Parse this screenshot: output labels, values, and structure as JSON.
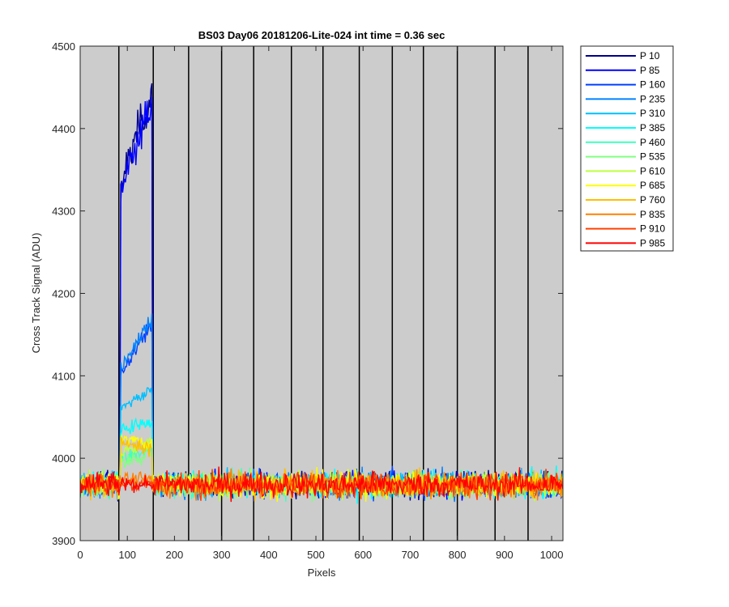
{
  "chart_data": {
    "type": "line",
    "title": "BS03 Day06 20181206-Lite-024 int time = 0.36 sec",
    "xlabel": "Pixels",
    "ylabel": "Cross Track Signal (ADU)",
    "xlim": [
      0,
      1024
    ],
    "ylim": [
      3900,
      4500
    ],
    "xticks": [
      0,
      100,
      200,
      300,
      400,
      500,
      600,
      700,
      800,
      900,
      1000
    ],
    "yticks": [
      3900,
      4000,
      4100,
      4200,
      4300,
      4400,
      4500
    ],
    "column_boundaries": [
      82,
      155,
      230,
      300,
      368,
      448,
      515,
      592,
      662,
      728,
      800,
      880,
      950
    ],
    "background_color": "#cccccc",
    "grid": false,
    "legend_position": "outside-top-right",
    "baseline": 3968,
    "noise_amplitude": 14,
    "illuminated_range": [
      85,
      152
    ],
    "series": [
      {
        "name": "P 10",
        "color": "#00008f",
        "peak_start": 4330,
        "peak_end": 4445
      },
      {
        "name": "P 85",
        "color": "#0000ff",
        "peak_start": 4320,
        "peak_end": 4430
      },
      {
        "name": "P 160",
        "color": "#0040ff",
        "peak_start": 4100,
        "peak_end": 4165
      },
      {
        "name": "P 235",
        "color": "#0080ff",
        "peak_start": 4110,
        "peak_end": 4170
      },
      {
        "name": "P 310",
        "color": "#00bfff",
        "peak_start": 4060,
        "peak_end": 4085
      },
      {
        "name": "P 385",
        "color": "#00ffff",
        "peak_start": 4035,
        "peak_end": 4045
      },
      {
        "name": "P 460",
        "color": "#40ffbf",
        "peak_start": 4000,
        "peak_end": 4010
      },
      {
        "name": "P 535",
        "color": "#80ff80",
        "peak_start": 3995,
        "peak_end": 4005
      },
      {
        "name": "P 610",
        "color": "#bfff40",
        "peak_start": 4005,
        "peak_end": 4020
      },
      {
        "name": "P 685",
        "color": "#ffff00",
        "peak_start": 4025,
        "peak_end": 4015
      },
      {
        "name": "P 760",
        "color": "#ffbf00",
        "peak_start": 4020,
        "peak_end": 4010
      },
      {
        "name": "P 835",
        "color": "#ff8000",
        "peak_start": 3975,
        "peak_end": 3975
      },
      {
        "name": "P 910",
        "color": "#ff4000",
        "peak_start": 3970,
        "peak_end": 3970
      },
      {
        "name": "P 985",
        "color": "#ff0000",
        "peak_start": 3968,
        "peak_end": 3968
      }
    ]
  }
}
